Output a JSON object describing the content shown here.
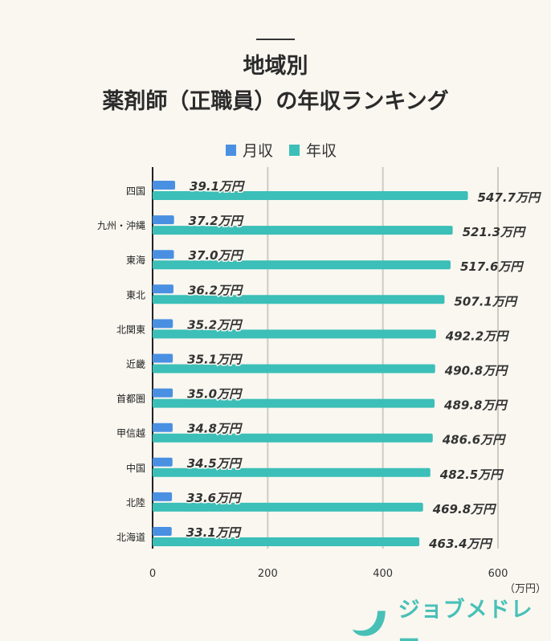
{
  "chart_data": {
    "type": "bar",
    "orientation": "horizontal",
    "title": "地域別\n薬剤師（正職員）の年収ランキング",
    "title_lines": [
      "地域別",
      "薬剤師（正職員）の年収ランキング"
    ],
    "categories": [
      "四国",
      "九州・沖縄",
      "東海",
      "東北",
      "北関東",
      "近畿",
      "首都圏",
      "甲信越",
      "中国",
      "北陸",
      "北海道"
    ],
    "series": [
      {
        "name": "月収",
        "color": "#4a90e2",
        "values": [
          39.1,
          37.2,
          37.0,
          36.2,
          35.2,
          35.1,
          35.0,
          34.8,
          34.5,
          33.6,
          33.1
        ]
      },
      {
        "name": "年収",
        "color": "#3bbfb8",
        "values": [
          547.7,
          521.3,
          517.6,
          507.1,
          492.2,
          490.8,
          489.8,
          486.6,
          482.5,
          469.8,
          463.4
        ]
      }
    ],
    "label_suffix": "万円",
    "xlim": [
      0,
      600
    ],
    "xticks": [
      "0",
      "200",
      "400",
      "600"
    ],
    "xlabel": "（万円）",
    "grid": true,
    "legend": "top"
  },
  "brand": {
    "logo_text": "ジョブメドレー",
    "color": "#48c0b7"
  }
}
